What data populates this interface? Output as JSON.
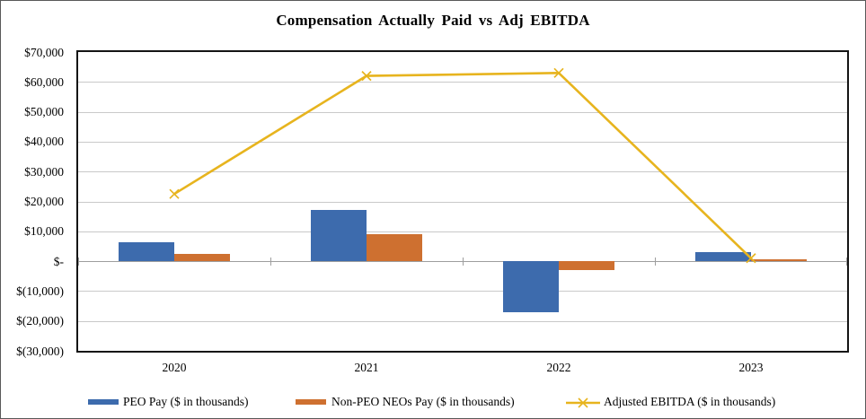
{
  "window": {
    "background": "#ffffff",
    "border_color": "#595959"
  },
  "chart_data": {
    "type": "combo",
    "title": "Compensation Actually Paid vs Adj EBITDA",
    "categories": [
      "2020",
      "2021",
      "2022",
      "2023"
    ],
    "series": [
      {
        "name": "PEO Pay ($ in thousands)",
        "type": "bar",
        "color": "#3D6BAD",
        "values": [
          6200,
          17000,
          -17000,
          3000
        ]
      },
      {
        "name": "Non-PEO NEOs Pay ($ in thousands)",
        "type": "bar",
        "color": "#CE7030",
        "values": [
          2500,
          9000,
          -3000,
          500
        ]
      },
      {
        "name": "Adjusted EBITDA ($ in thousands)",
        "type": "line",
        "color": "#E7B41E",
        "marker": "x",
        "values": [
          22500,
          62000,
          63000,
          1000
        ]
      }
    ],
    "y_axis": {
      "min": -30000,
      "max": 70000,
      "step": 10000,
      "tick_labels": [
        "$70,000",
        "$60,000",
        "$50,000",
        "$40,000",
        "$30,000",
        "$20,000",
        "$10,000",
        "$-",
        "$(10,000)",
        "$(20,000)",
        "$(30,000)"
      ]
    },
    "grid": true,
    "legend_position": "bottom"
  }
}
